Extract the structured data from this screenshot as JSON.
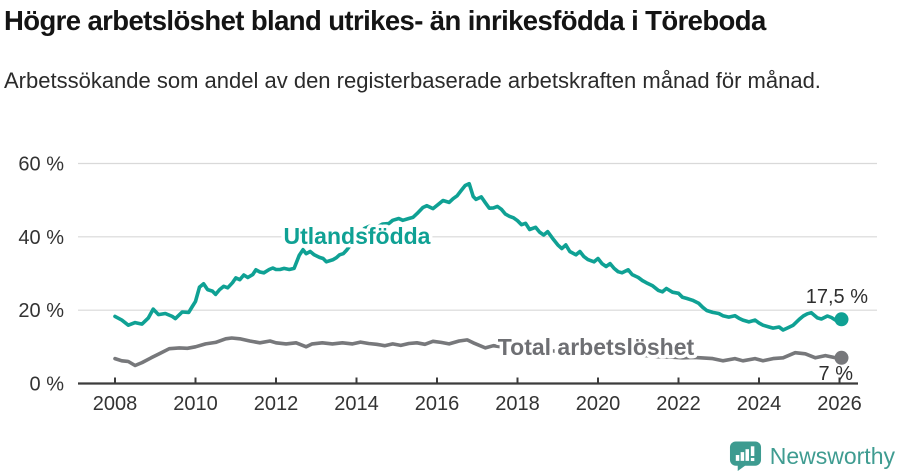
{
  "header": {
    "title": "Högre arbetslöshet bland utrikes- än inrikesfödda i Töreboda",
    "subtitle": "Arbetssökande som andel av den registerbaserade arbetskraften månad för månad."
  },
  "chart_data": {
    "type": "line",
    "grid": "horizontal",
    "grid_color": "#D9D9D9",
    "axis_color": "#3C3C3C",
    "tick_text_color": "#333333",
    "value_label_color": "#2E2E2E",
    "x_axis": {
      "ticks": [
        2008,
        2010,
        2012,
        2014,
        2016,
        2018,
        2020,
        2022,
        2024,
        2026
      ],
      "range": [
        2007.9,
        2026.45
      ]
    },
    "y_axis": {
      "ticks": [
        0,
        20,
        40,
        60
      ],
      "tick_labels": [
        "0 %",
        "20 %",
        "40 %",
        "60 %"
      ],
      "range": [
        0,
        60
      ],
      "unit": "%"
    },
    "series": [
      {
        "name": "Utlandsfödda",
        "color": "#0FA194",
        "label_color": "#0FA194",
        "end_value": 17.5,
        "end_label": "17,5 %",
        "points": [
          [
            2008.0,
            18.3
          ],
          [
            2008.17,
            17.3
          ],
          [
            2008.33,
            15.9
          ],
          [
            2008.5,
            16.6
          ],
          [
            2008.67,
            16.2
          ],
          [
            2008.83,
            17.9
          ],
          [
            2008.95,
            20.3
          ],
          [
            2009.08,
            18.8
          ],
          [
            2009.25,
            19.1
          ],
          [
            2009.42,
            18.3
          ],
          [
            2009.5,
            17.7
          ],
          [
            2009.67,
            19.5
          ],
          [
            2009.83,
            19.4
          ],
          [
            2009.92,
            21.0
          ],
          [
            2010.0,
            22.4
          ],
          [
            2010.1,
            26.3
          ],
          [
            2010.2,
            27.2
          ],
          [
            2010.3,
            25.6
          ],
          [
            2010.42,
            25.2
          ],
          [
            2010.5,
            24.3
          ],
          [
            2010.6,
            25.6
          ],
          [
            2010.7,
            26.5
          ],
          [
            2010.8,
            26.1
          ],
          [
            2010.92,
            27.5
          ],
          [
            2011.0,
            28.8
          ],
          [
            2011.1,
            28.3
          ],
          [
            2011.2,
            29.6
          ],
          [
            2011.3,
            28.9
          ],
          [
            2011.42,
            29.7
          ],
          [
            2011.5,
            31.0
          ],
          [
            2011.6,
            30.4
          ],
          [
            2011.7,
            30.2
          ],
          [
            2011.83,
            31.1
          ],
          [
            2011.92,
            31.5
          ],
          [
            2012.0,
            31.1
          ],
          [
            2012.1,
            31.1
          ],
          [
            2012.2,
            31.4
          ],
          [
            2012.33,
            31.1
          ],
          [
            2012.45,
            31.4
          ],
          [
            2012.58,
            35.0
          ],
          [
            2012.67,
            36.5
          ],
          [
            2012.75,
            35.4
          ],
          [
            2012.85,
            36.0
          ],
          [
            2012.95,
            35.1
          ],
          [
            2013.08,
            34.4
          ],
          [
            2013.17,
            34.1
          ],
          [
            2013.25,
            33.2
          ],
          [
            2013.42,
            33.8
          ],
          [
            2013.5,
            34.3
          ],
          [
            2013.58,
            35.1
          ],
          [
            2013.67,
            35.4
          ],
          [
            2013.75,
            36.3
          ],
          [
            2013.83,
            37.5
          ],
          [
            2013.95,
            39.5
          ],
          [
            2014.05,
            40.6
          ],
          [
            2014.2,
            42.3
          ],
          [
            2014.35,
            43.0
          ],
          [
            2014.5,
            42.6
          ],
          [
            2014.65,
            43.5
          ],
          [
            2014.8,
            43.6
          ],
          [
            2014.9,
            44.5
          ],
          [
            2015.05,
            45.0
          ],
          [
            2015.15,
            44.5
          ],
          [
            2015.3,
            45.0
          ],
          [
            2015.4,
            45.3
          ],
          [
            2015.5,
            46.3
          ],
          [
            2015.65,
            48.0
          ],
          [
            2015.75,
            48.5
          ],
          [
            2015.9,
            47.7
          ],
          [
            2016.05,
            49.0
          ],
          [
            2016.15,
            49.9
          ],
          [
            2016.3,
            49.4
          ],
          [
            2016.4,
            50.4
          ],
          [
            2016.5,
            51.2
          ],
          [
            2016.6,
            52.6
          ],
          [
            2016.7,
            54.0
          ],
          [
            2016.8,
            54.5
          ],
          [
            2016.9,
            51.0
          ],
          [
            2016.97,
            50.2
          ],
          [
            2017.1,
            50.9
          ],
          [
            2017.2,
            49.3
          ],
          [
            2017.3,
            47.8
          ],
          [
            2017.4,
            47.9
          ],
          [
            2017.5,
            48.3
          ],
          [
            2017.6,
            47.5
          ],
          [
            2017.7,
            46.2
          ],
          [
            2017.8,
            45.6
          ],
          [
            2017.9,
            45.2
          ],
          [
            2018.0,
            44.4
          ],
          [
            2018.1,
            43.3
          ],
          [
            2018.2,
            43.7
          ],
          [
            2018.3,
            42.0
          ],
          [
            2018.45,
            42.6
          ],
          [
            2018.55,
            41.3
          ],
          [
            2018.65,
            40.5
          ],
          [
            2018.75,
            41.4
          ],
          [
            2018.9,
            39.2
          ],
          [
            2019.0,
            37.8
          ],
          [
            2019.1,
            36.8
          ],
          [
            2019.2,
            37.8
          ],
          [
            2019.3,
            36.0
          ],
          [
            2019.45,
            35.1
          ],
          [
            2019.55,
            36.0
          ],
          [
            2019.65,
            34.6
          ],
          [
            2019.75,
            33.8
          ],
          [
            2019.9,
            33.2
          ],
          [
            2020.0,
            34.1
          ],
          [
            2020.1,
            32.7
          ],
          [
            2020.2,
            31.9
          ],
          [
            2020.3,
            32.7
          ],
          [
            2020.4,
            31.4
          ],
          [
            2020.5,
            30.5
          ],
          [
            2020.6,
            30.2
          ],
          [
            2020.75,
            31.0
          ],
          [
            2020.85,
            29.7
          ],
          [
            2021.0,
            28.9
          ],
          [
            2021.1,
            28.1
          ],
          [
            2021.2,
            27.5
          ],
          [
            2021.35,
            26.7
          ],
          [
            2021.5,
            25.4
          ],
          [
            2021.6,
            25.0
          ],
          [
            2021.7,
            25.9
          ],
          [
            2021.85,
            24.9
          ],
          [
            2022.0,
            24.6
          ],
          [
            2022.1,
            23.5
          ],
          [
            2022.2,
            23.2
          ],
          [
            2022.35,
            22.7
          ],
          [
            2022.5,
            21.9
          ],
          [
            2022.6,
            20.8
          ],
          [
            2022.7,
            19.9
          ],
          [
            2022.85,
            19.4
          ],
          [
            2023.0,
            19.1
          ],
          [
            2023.1,
            18.5
          ],
          [
            2023.25,
            18.1
          ],
          [
            2023.4,
            18.5
          ],
          [
            2023.5,
            17.8
          ],
          [
            2023.6,
            17.3
          ],
          [
            2023.75,
            16.8
          ],
          [
            2023.9,
            17.3
          ],
          [
            2024.0,
            16.5
          ],
          [
            2024.1,
            15.9
          ],
          [
            2024.25,
            15.4
          ],
          [
            2024.35,
            15.1
          ],
          [
            2024.5,
            15.4
          ],
          [
            2024.6,
            14.6
          ],
          [
            2024.7,
            15.1
          ],
          [
            2024.85,
            15.9
          ],
          [
            2025.0,
            17.5
          ],
          [
            2025.1,
            18.4
          ],
          [
            2025.2,
            19.0
          ],
          [
            2025.3,
            19.3
          ],
          [
            2025.45,
            17.9
          ],
          [
            2025.55,
            17.6
          ],
          [
            2025.7,
            18.4
          ],
          [
            2025.8,
            18.0
          ],
          [
            2025.9,
            17.3
          ],
          [
            2026.05,
            17.5
          ]
        ]
      },
      {
        "name": "Total arbetslöshet",
        "color": "#77787B",
        "label_color": "#6E6F73",
        "end_value": 7,
        "end_label": "7 %",
        "points": [
          [
            2008.0,
            6.8
          ],
          [
            2008.17,
            6.2
          ],
          [
            2008.33,
            6.0
          ],
          [
            2008.5,
            4.9
          ],
          [
            2008.67,
            5.7
          ],
          [
            2008.9,
            7.0
          ],
          [
            2009.1,
            8.1
          ],
          [
            2009.35,
            9.5
          ],
          [
            2009.6,
            9.7
          ],
          [
            2009.8,
            9.6
          ],
          [
            2010.0,
            10.0
          ],
          [
            2010.25,
            10.8
          ],
          [
            2010.5,
            11.2
          ],
          [
            2010.75,
            12.2
          ],
          [
            2010.9,
            12.4
          ],
          [
            2011.1,
            12.2
          ],
          [
            2011.35,
            11.6
          ],
          [
            2011.6,
            11.1
          ],
          [
            2011.85,
            11.6
          ],
          [
            2012.0,
            11.1
          ],
          [
            2012.25,
            10.8
          ],
          [
            2012.5,
            11.1
          ],
          [
            2012.75,
            10.0
          ],
          [
            2012.9,
            10.8
          ],
          [
            2013.15,
            11.1
          ],
          [
            2013.4,
            10.8
          ],
          [
            2013.65,
            11.1
          ],
          [
            2013.9,
            10.8
          ],
          [
            2014.1,
            11.3
          ],
          [
            2014.3,
            10.9
          ],
          [
            2014.5,
            10.7
          ],
          [
            2014.7,
            10.3
          ],
          [
            2014.9,
            10.8
          ],
          [
            2015.1,
            10.4
          ],
          [
            2015.3,
            10.9
          ],
          [
            2015.5,
            11.1
          ],
          [
            2015.7,
            10.7
          ],
          [
            2015.9,
            11.5
          ],
          [
            2016.1,
            11.2
          ],
          [
            2016.3,
            10.8
          ],
          [
            2016.55,
            11.6
          ],
          [
            2016.75,
            11.9
          ],
          [
            2016.9,
            11.1
          ],
          [
            2017.2,
            9.7
          ],
          [
            2017.4,
            10.3
          ],
          [
            2017.6,
            10.0
          ],
          [
            2017.9,
            9.6
          ],
          [
            2018.2,
            9.3
          ],
          [
            2018.5,
            9.5
          ],
          [
            2018.8,
            9.0
          ],
          [
            2019.1,
            8.6
          ],
          [
            2019.4,
            8.8
          ],
          [
            2019.7,
            8.3
          ],
          [
            2020.0,
            8.5
          ],
          [
            2020.3,
            8.8
          ],
          [
            2020.6,
            8.4
          ],
          [
            2020.9,
            8.0
          ],
          [
            2021.2,
            7.6
          ],
          [
            2021.5,
            7.3
          ],
          [
            2021.8,
            7.2
          ],
          [
            2022.1,
            7.0
          ],
          [
            2022.4,
            7.1
          ],
          [
            2022.55,
            7.0
          ],
          [
            2022.85,
            6.8
          ],
          [
            2023.1,
            6.2
          ],
          [
            2023.4,
            6.8
          ],
          [
            2023.6,
            6.2
          ],
          [
            2023.9,
            6.8
          ],
          [
            2024.1,
            6.2
          ],
          [
            2024.35,
            6.8
          ],
          [
            2024.6,
            7.0
          ],
          [
            2024.9,
            8.4
          ],
          [
            2025.15,
            8.1
          ],
          [
            2025.4,
            7.0
          ],
          [
            2025.65,
            7.6
          ],
          [
            2025.9,
            7.0
          ],
          [
            2026.05,
            7.0
          ]
        ]
      }
    ]
  },
  "footer": {
    "brand": "Newsworthy",
    "brand_color": "#3F9C91",
    "icon": "speech-bubble-bar-chart"
  }
}
